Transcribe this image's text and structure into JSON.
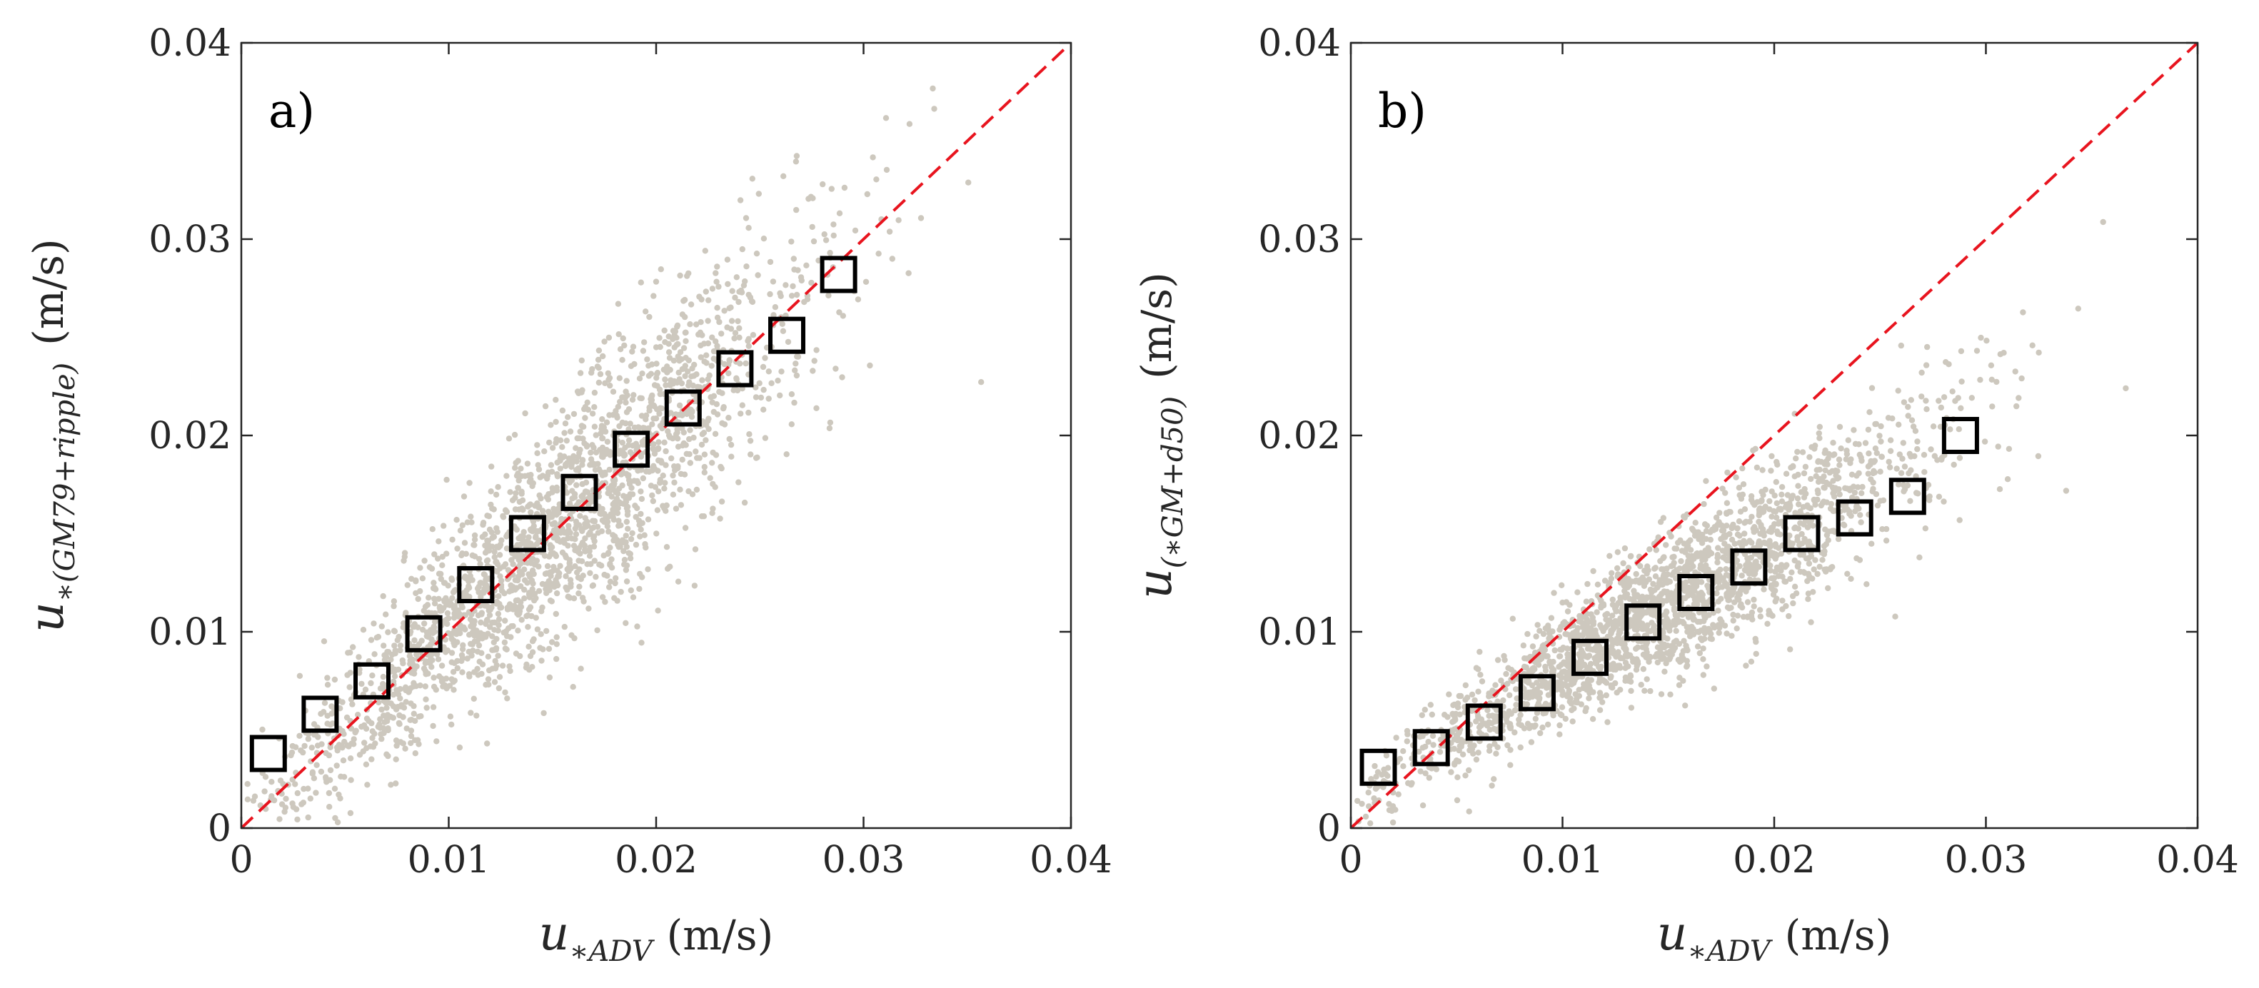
{
  "chart_data": [
    {
      "type": "scatter",
      "panel_label": "a)",
      "xlabel": {
        "base": "u",
        "sub": "∗ADV",
        "units": "(m/s)"
      },
      "ylabel": {
        "base": "u",
        "sub": "∗(GM79+ripple)",
        "units": "(m/s)"
      },
      "xlim": [
        0,
        0.04
      ],
      "ylim": [
        0,
        0.04
      ],
      "xticks": [
        "0",
        "0.01",
        "0.02",
        "0.03",
        "0.04"
      ],
      "yticks": [
        "0",
        "0.01",
        "0.02",
        "0.03",
        "0.04"
      ],
      "reference_line": {
        "style": "dashed",
        "color": "#e8141e",
        "from": [
          0,
          0
        ],
        "to": [
          0.04,
          0.04
        ]
      },
      "scatter_color": "#cdc8be",
      "scatter_model": {
        "n": 2200,
        "slope": 1.0,
        "intercept": 0.0,
        "spread": 0.0026,
        "x_center": 0.015,
        "x_sd": 0.0065
      },
      "binned_means": {
        "marker": "square",
        "x": [
          0.0013,
          0.0038,
          0.0063,
          0.0088,
          0.0113,
          0.0138,
          0.0163,
          0.0188,
          0.0213,
          0.0238,
          0.0263,
          0.0288
        ],
        "y": [
          0.0038,
          0.0058,
          0.0075,
          0.0099,
          0.0124,
          0.015,
          0.0171,
          0.0193,
          0.0214,
          0.0234,
          0.0251,
          0.0282
        ]
      }
    },
    {
      "type": "scatter",
      "panel_label": "b)",
      "xlabel": {
        "base": "u",
        "sub": "∗ADV",
        "units": "(m/s)"
      },
      "ylabel": {
        "base": "u",
        "sub": "(∗GM+d50)",
        "units": "(m/s)"
      },
      "xlim": [
        0,
        0.04
      ],
      "ylim": [
        0,
        0.04
      ],
      "xticks": [
        "0",
        "0.01",
        "0.02",
        "0.03",
        "0.04"
      ],
      "yticks": [
        "0",
        "0.01",
        "0.02",
        "0.03",
        "0.04"
      ],
      "reference_line": {
        "style": "dashed",
        "color": "#e8141e",
        "from": [
          0,
          0
        ],
        "to": [
          0.04,
          0.04
        ]
      },
      "scatter_color": "#cdc8be",
      "scatter_model": {
        "n": 2200,
        "slope": 0.66,
        "intercept": 0.0015,
        "spread": 0.0016,
        "x_center": 0.015,
        "x_sd": 0.0065
      },
      "binned_means": {
        "marker": "square",
        "x": [
          0.0013,
          0.0038,
          0.0063,
          0.0088,
          0.0113,
          0.0138,
          0.0163,
          0.0188,
          0.0213,
          0.0238,
          0.0263,
          0.0288
        ],
        "y": [
          0.0031,
          0.0041,
          0.0054,
          0.0069,
          0.0087,
          0.0105,
          0.012,
          0.0133,
          0.015,
          0.0158,
          0.0169,
          0.02
        ]
      }
    }
  ]
}
